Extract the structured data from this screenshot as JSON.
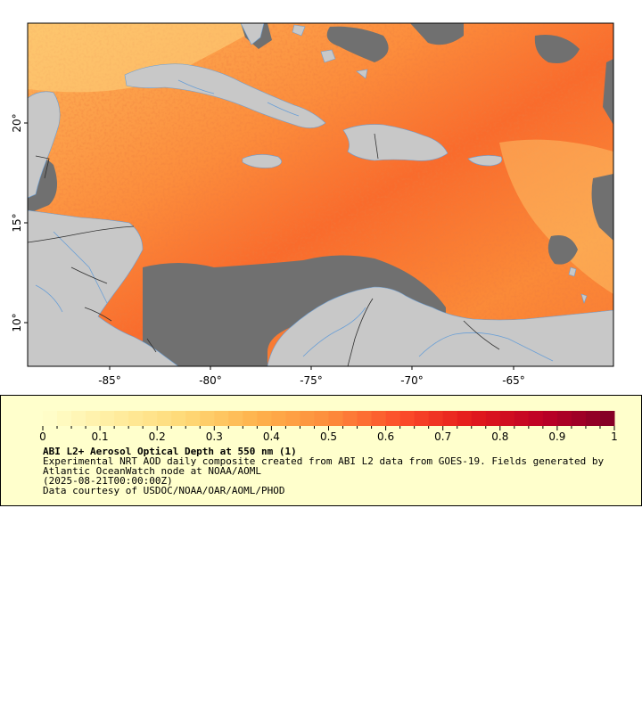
{
  "map": {
    "lon_ticks": [
      "-85°",
      "-80°",
      "-75°",
      "-70°",
      "-65°"
    ],
    "lat_ticks": [
      "20°",
      "15°",
      "10°"
    ],
    "colors": {
      "land": "#c8c8c8",
      "no_data": "#707070",
      "rivers": "#6a9fd6",
      "borders": "#303030",
      "frame": "#000000"
    }
  },
  "legend": {
    "title": "ABI L2+ Aerosol Optical Depth at 550 nm (1)",
    "description": "Experimental NRT AOD daily composite created from ABI L2 data from GOES-19. Fields generated by Atlantic OceanWatch node at NOAA/AOML",
    "time": "(2025-08-21T00:00:00Z)",
    "credit": "Data courtesy of USDOC/NOAA/OAR/AOML/PHOD",
    "scale_labels": [
      "0",
      "0.1",
      "0.2",
      "0.3",
      "0.4",
      "0.5",
      "0.6",
      "0.7",
      "0.8",
      "0.9",
      "1"
    ],
    "scale_min": 0,
    "scale_max": 1,
    "colormap": [
      "#ffffcc",
      "#ffeda0",
      "#fed976",
      "#feb24c",
      "#fd8d3c",
      "#fc4e2a",
      "#e31a1c",
      "#bd0026",
      "#800026"
    ]
  }
}
